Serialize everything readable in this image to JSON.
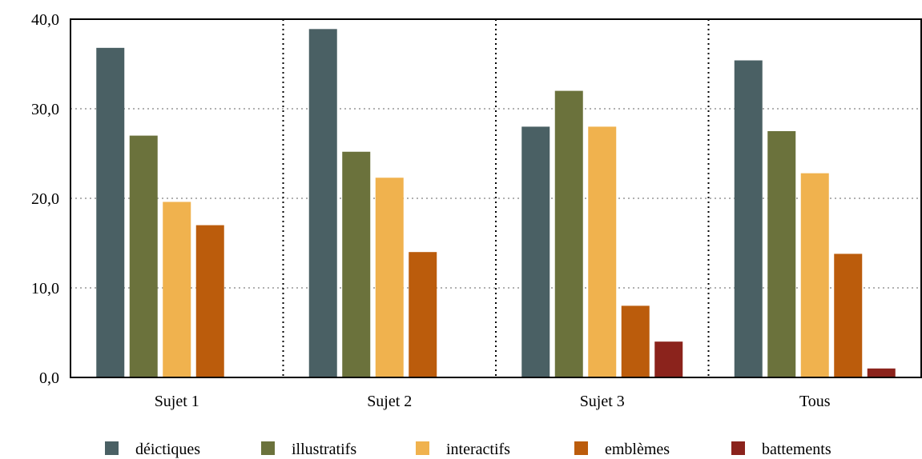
{
  "chart_data": {
    "type": "bar",
    "categories": [
      "Sujet 1",
      "Sujet 2",
      "Sujet 3",
      "Tous"
    ],
    "series": [
      {
        "name": "déictiques",
        "color": "#4a6064",
        "values": [
          36.8,
          38.9,
          28.0,
          35.4
        ]
      },
      {
        "name": "illustratifs",
        "color": "#6b723c",
        "values": [
          27.0,
          25.2,
          32.0,
          27.5
        ]
      },
      {
        "name": "interactifs",
        "color": "#f0b24e",
        "values": [
          19.6,
          22.3,
          28.0,
          22.8
        ]
      },
      {
        "name": "emblèmes",
        "color": "#bb5c0c",
        "values": [
          17.0,
          14.0,
          8.0,
          13.8
        ]
      },
      {
        "name": "battements",
        "color": "#8b231c",
        "values": [
          0,
          0,
          4.0,
          1.0
        ]
      }
    ],
    "y_ticks": [
      "0,0",
      "10,0",
      "20,0",
      "30,0",
      "40,0"
    ],
    "ylim": [
      0,
      40
    ],
    "grid": "horizontal dotted",
    "category_separators": "vertical dotted",
    "legend_position": "bottom",
    "title": "",
    "xlabel": "",
    "ylabel": ""
  }
}
